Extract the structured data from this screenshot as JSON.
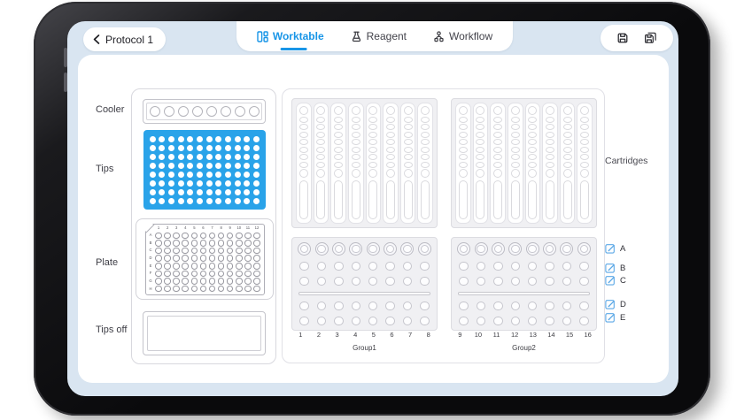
{
  "app": {
    "back": {
      "label": "Protocol 1"
    },
    "tabs": [
      {
        "id": "worktable",
        "label": "Worktable",
        "active": true
      },
      {
        "id": "reagent",
        "label": "Reagent",
        "active": false
      },
      {
        "id": "workflow",
        "label": "Workflow",
        "active": false
      }
    ],
    "actions": [
      {
        "id": "save",
        "icon": "save-icon"
      },
      {
        "id": "save-as",
        "icon": "save-as-icon"
      }
    ]
  },
  "worktable": {
    "cooler": {
      "label": "Cooler",
      "wells": 8
    },
    "tips": {
      "label": "Tips",
      "rows": 8,
      "cols": 12
    },
    "plate": {
      "label": "Plate",
      "col_headers": [
        "1",
        "2",
        "3",
        "4",
        "5",
        "6",
        "7",
        "8",
        "9",
        "10",
        "11",
        "12"
      ],
      "row_headers": [
        "A",
        "B",
        "C",
        "D",
        "E",
        "F",
        "G",
        "H"
      ]
    },
    "tips_off": {
      "label": "Tips off"
    },
    "cartridge_panels": {
      "count": 2,
      "strips_per_panel": 8,
      "ovals_per_strip": 7
    },
    "wells_panels": {
      "count": 2,
      "cols": 8,
      "rows_above_slot": 3,
      "rows_below_slot": 2
    },
    "groups": [
      {
        "label": "Group1",
        "numbers": [
          "1",
          "2",
          "3",
          "4",
          "5",
          "6",
          "7",
          "8"
        ]
      },
      {
        "label": "Group2",
        "numbers": [
          "9",
          "10",
          "11",
          "12",
          "13",
          "14",
          "15",
          "16"
        ]
      }
    ],
    "cartridges": {
      "label": "Cartridges",
      "slots": [
        "A",
        "B",
        "C",
        "D",
        "E"
      ]
    }
  },
  "colors": {
    "accent": "#1895E7",
    "tips_fill": "#2AA3E9",
    "screen_bg": "#D9E5F1"
  }
}
